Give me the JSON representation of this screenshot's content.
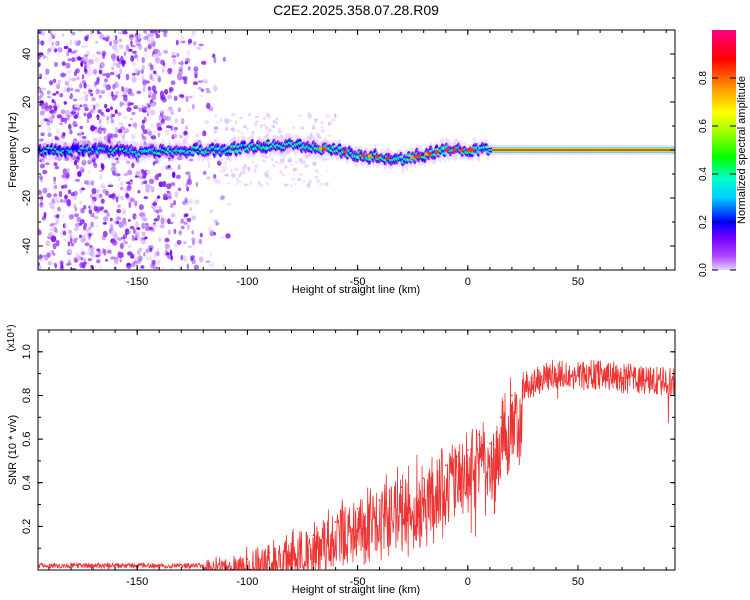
{
  "figure_title": "C2E2.2025.358.07.28.R09",
  "chart_data": [
    {
      "type": "heatmap",
      "title": "C2E2.2025.358.07.28.R09",
      "xlabel": "Height of straight line (km)",
      "ylabel": "Frequency (Hz)",
      "xlim": [
        -195,
        94
      ],
      "ylim": [
        -50,
        50
      ],
      "xticks": [
        -150,
        -100,
        -50,
        0,
        50
      ],
      "xtick_labels": [
        "-150",
        "-100",
        "-50",
        "0",
        "50"
      ],
      "yticks": [
        -40,
        -20,
        0,
        20,
        40
      ],
      "ytick_labels": [
        "-40",
        "-20",
        "0",
        "20",
        "40"
      ],
      "ridge_x": [
        -195,
        -170,
        -150,
        -130,
        -110,
        -90,
        -80,
        -70,
        -60,
        -50,
        -40,
        -30,
        -20,
        -10,
        0,
        10,
        20,
        50,
        94
      ],
      "ridge_freq": [
        0,
        0,
        -1,
        0,
        0,
        2,
        2,
        1,
        0,
        -2,
        -3,
        -4,
        -2,
        0,
        0,
        0,
        0,
        0,
        0
      ],
      "noise_region_km": [
        -195,
        -115
      ],
      "colorbar": {
        "label": "Normalized spectral amplitude",
        "range": [
          0,
          1
        ],
        "ticks": [
          0.0,
          0.2,
          0.4,
          0.6,
          0.8
        ],
        "tick_labels": [
          "0.0",
          "0.2",
          "0.4",
          "0.6",
          "0.8"
        ],
        "colors": [
          "#e8d0ff",
          "#8800ff",
          "#0000ff",
          "#00ffff",
          "#00ff00",
          "#ffff00",
          "#ff8800",
          "#ff0000",
          "#ff0088"
        ]
      }
    },
    {
      "type": "line",
      "xlabel": "Height of straight line (km)",
      "ylabel": "SNR (10 * v/v)",
      "y_multiplier": "(x10⁴)",
      "line_color": "#ee3333",
      "xlim": [
        -195,
        94
      ],
      "ylim": [
        0,
        1.1
      ],
      "xticks": [
        -150,
        -100,
        -50,
        0,
        50
      ],
      "xtick_labels": [
        "-150",
        "-100",
        "-50",
        "0",
        "50"
      ],
      "yticks": [
        0.2,
        0.4,
        0.6,
        0.8,
        1.0
      ],
      "ytick_labels": [
        "0.2",
        "0.4",
        "0.6",
        "0.8",
        "1.0"
      ],
      "series": [
        {
          "name": "SNR",
          "x": [
            -195,
            -180,
            -160,
            -140,
            -120,
            -110,
            -100,
            -90,
            -80,
            -70,
            -60,
            -50,
            -40,
            -30,
            -20,
            -10,
            -5,
            0,
            5,
            10,
            15,
            20,
            25,
            30,
            40,
            50,
            60,
            70,
            80,
            94
          ],
          "y": [
            0.02,
            0.02,
            0.02,
            0.02,
            0.02,
            0.04,
            0.05,
            0.08,
            0.12,
            0.16,
            0.22,
            0.28,
            0.32,
            0.38,
            0.42,
            0.48,
            0.52,
            0.55,
            0.62,
            0.58,
            0.7,
            0.8,
            0.84,
            0.86,
            0.9,
            0.89,
            0.9,
            0.88,
            0.87,
            0.86
          ]
        }
      ]
    }
  ]
}
